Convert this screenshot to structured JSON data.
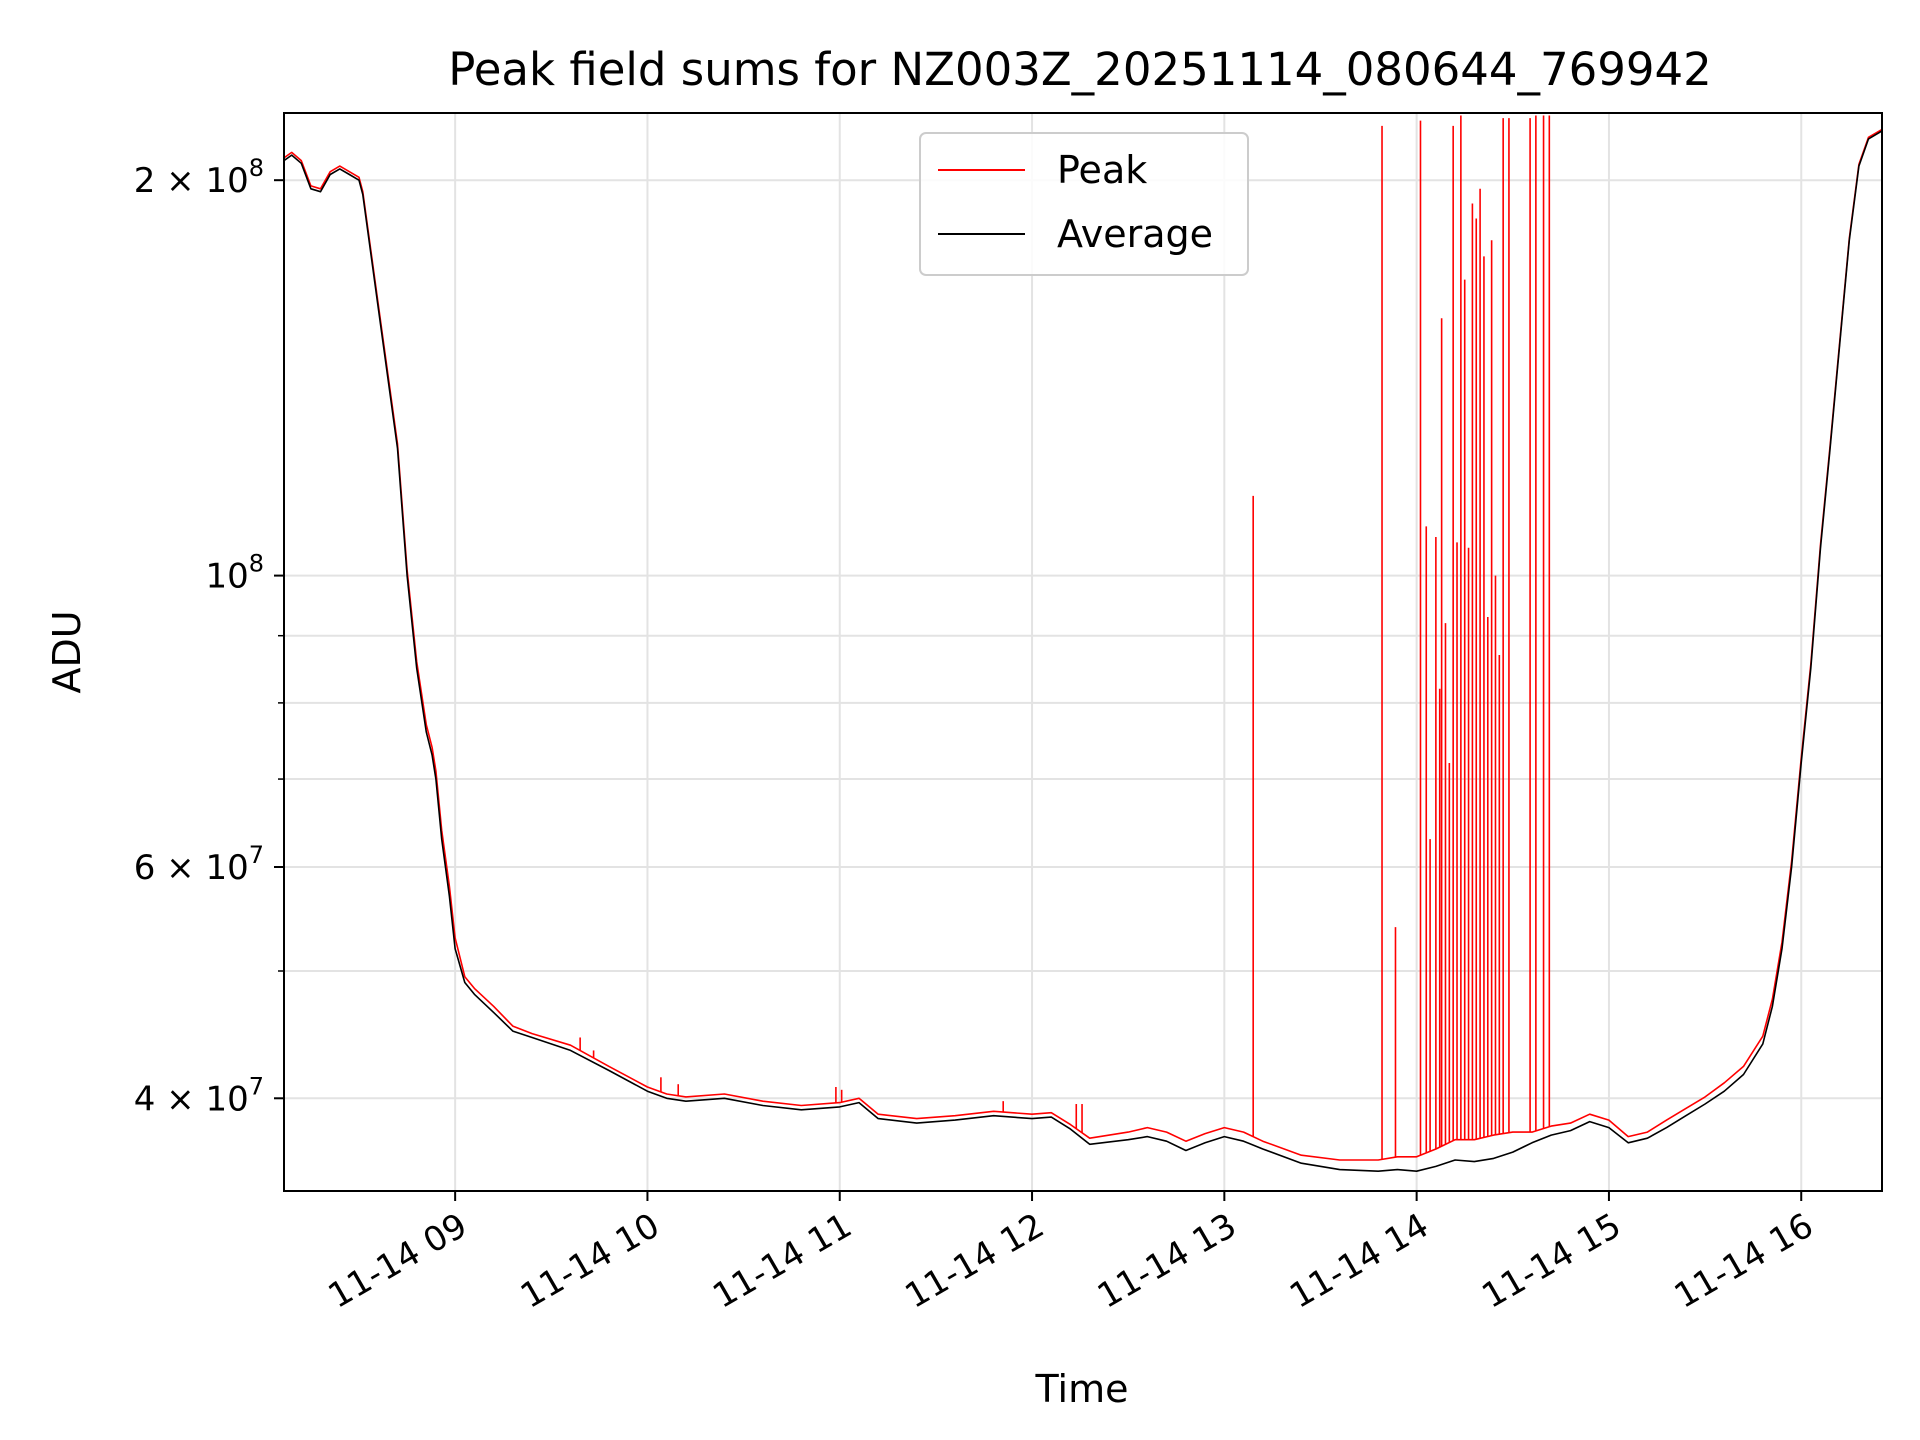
{
  "chart_data": {
    "type": "line",
    "title": "Peak field sums for NZ003Z_20251114_080644_769942",
    "xlabel": "Time",
    "ylabel": "ADU",
    "yscale": "log",
    "xlim": [
      8.11,
      16.42
    ],
    "ylim": [
      34000000,
      225000000
    ],
    "grid": true,
    "legend": {
      "location": "top-center",
      "entries": [
        "Peak",
        "Average"
      ]
    },
    "x_ticks": [
      {
        "value": 9,
        "label": "11-14 09"
      },
      {
        "value": 10,
        "label": "11-14 10"
      },
      {
        "value": 11,
        "label": "11-14 11"
      },
      {
        "value": 12,
        "label": "11-14 12"
      },
      {
        "value": 13,
        "label": "11-14 13"
      },
      {
        "value": 14,
        "label": "11-14 14"
      },
      {
        "value": 15,
        "label": "11-14 15"
      },
      {
        "value": 16,
        "label": "11-14 16"
      }
    ],
    "y_major_ticks": [
      {
        "value": 40000000,
        "mantissa": "4",
        "exponent": "7"
      },
      {
        "value": 60000000,
        "mantissa": "6",
        "exponent": "7"
      },
      {
        "value": 100000000,
        "mantissa": "",
        "exponent": "8"
      },
      {
        "value": 200000000,
        "mantissa": "2",
        "exponent": "8"
      }
    ],
    "y_minor_ticks": [
      50000000,
      70000000,
      80000000,
      90000000
    ],
    "series": [
      {
        "name": "Average",
        "color": "#000000",
        "x": [
          8.11,
          8.15,
          8.2,
          8.25,
          8.3,
          8.35,
          8.4,
          8.45,
          8.5,
          8.52,
          8.6,
          8.7,
          8.75,
          8.8,
          8.85,
          8.88,
          8.9,
          8.93,
          8.97,
          9.0,
          9.05,
          9.1,
          9.2,
          9.3,
          9.4,
          9.6,
          9.8,
          10.0,
          10.1,
          10.2,
          10.4,
          10.6,
          10.8,
          11.0,
          11.1,
          11.2,
          11.4,
          11.6,
          11.8,
          12.0,
          12.1,
          12.2,
          12.3,
          12.5,
          12.6,
          12.7,
          12.8,
          12.9,
          13.0,
          13.1,
          13.2,
          13.4,
          13.6,
          13.8,
          13.9,
          14.0,
          14.1,
          14.2,
          14.3,
          14.4,
          14.5,
          14.6,
          14.7,
          14.8,
          14.9,
          15.0,
          15.1,
          15.2,
          15.3,
          15.4,
          15.5,
          15.6,
          15.7,
          15.8,
          15.85,
          15.9,
          15.95,
          16.0,
          16.05,
          16.1,
          16.15,
          16.2,
          16.25,
          16.3,
          16.35,
          16.42
        ],
        "y": [
          207000000,
          209000000,
          206000000,
          197000000,
          196000000,
          202000000,
          204000000,
          202000000,
          200000000,
          195000000,
          160000000,
          125000000,
          100000000,
          85000000,
          76000000,
          73000000,
          70000000,
          63000000,
          57000000,
          52000000,
          49000000,
          48000000,
          46500000,
          45000000,
          44500000,
          43500000,
          42000000,
          40500000,
          40000000,
          39800000,
          40000000,
          39500000,
          39200000,
          39400000,
          39700000,
          38600000,
          38300000,
          38500000,
          38800000,
          38600000,
          38700000,
          37900000,
          36900000,
          37200000,
          37400000,
          37100000,
          36500000,
          37000000,
          37400000,
          37100000,
          36600000,
          35700000,
          35300000,
          35200000,
          35300000,
          35200000,
          35500000,
          35900000,
          35800000,
          36000000,
          36400000,
          37000000,
          37500000,
          37800000,
          38400000,
          38000000,
          37000000,
          37300000,
          38000000,
          38800000,
          39600000,
          40500000,
          41700000,
          44000000,
          47000000,
          52000000,
          60000000,
          72000000,
          85000000,
          105000000,
          125000000,
          150000000,
          180000000,
          205000000,
          215000000,
          218000000
        ]
      },
      {
        "name": "Peak",
        "color": "#ff0000",
        "x": [
          8.11,
          8.15,
          8.2,
          8.25,
          8.3,
          8.35,
          8.4,
          8.45,
          8.5,
          8.52,
          8.6,
          8.7,
          8.75,
          8.8,
          8.85,
          8.88,
          8.9,
          8.93,
          8.97,
          9.0,
          9.05,
          9.1,
          9.2,
          9.3,
          9.4,
          9.6,
          9.8,
          10.0,
          10.1,
          10.2,
          10.4,
          10.6,
          10.8,
          11.0,
          11.1,
          11.2,
          11.4,
          11.6,
          11.8,
          12.0,
          12.1,
          12.2,
          12.3,
          12.5,
          12.6,
          12.7,
          12.8,
          12.9,
          13.0,
          13.1,
          13.2,
          13.4,
          13.6,
          13.8,
          13.9,
          14.0,
          14.1,
          14.2,
          14.3,
          14.4,
          14.5,
          14.6,
          14.7,
          14.8,
          14.9,
          15.0,
          15.1,
          15.2,
          15.3,
          15.4,
          15.5,
          15.6,
          15.7,
          15.8,
          15.85,
          15.9,
          15.95,
          16.0,
          16.05,
          16.1,
          16.15,
          16.2,
          16.25,
          16.3,
          16.35,
          16.42
        ],
        "y": [
          208000000,
          210000000,
          207000000,
          198000000,
          197000000,
          203000000,
          205000000,
          203000000,
          201000000,
          196000000,
          161000000,
          126000000,
          101000000,
          86000000,
          77000000,
          74000000,
          71000000,
          64000000,
          58000000,
          53000000,
          49500000,
          48500000,
          47000000,
          45400000,
          44800000,
          43900000,
          42300000,
          40800000,
          40300000,
          40100000,
          40300000,
          39800000,
          39500000,
          39700000,
          40000000,
          38900000,
          38600000,
          38800000,
          39100000,
          38900000,
          39000000,
          38200000,
          37300000,
          37700000,
          38000000,
          37700000,
          37100000,
          37600000,
          38000000,
          37700000,
          37100000,
          36200000,
          35900000,
          35900000,
          36100000,
          36100000,
          36600000,
          37200000,
          37200000,
          37500000,
          37700000,
          37700000,
          38100000,
          38300000,
          38900000,
          38500000,
          37400000,
          37700000,
          38500000,
          39300000,
          40100000,
          41100000,
          42300000,
          44600000,
          47600000,
          52600000,
          60600000,
          72600000,
          85600000,
          105600000,
          125600000,
          150600000,
          180600000,
          205600000,
          215600000,
          218600000
        ]
      }
    ],
    "peak_spikes": [
      {
        "x": 9.65,
        "y": 44500000
      },
      {
        "x": 9.72,
        "y": 43500000
      },
      {
        "x": 10.07,
        "y": 41500000
      },
      {
        "x": 10.16,
        "y": 41000000
      },
      {
        "x": 10.98,
        "y": 40800000
      },
      {
        "x": 11.01,
        "y": 40600000
      },
      {
        "x": 11.85,
        "y": 39800000
      },
      {
        "x": 12.23,
        "y": 39600000
      },
      {
        "x": 12.26,
        "y": 39600000
      },
      {
        "x": 13.15,
        "y": 115000000
      },
      {
        "x": 13.82,
        "y": 220000000
      },
      {
        "x": 13.89,
        "y": 54000000
      },
      {
        "x": 14.02,
        "y": 222000000
      },
      {
        "x": 14.05,
        "y": 109000000
      },
      {
        "x": 14.07,
        "y": 63000000
      },
      {
        "x": 14.1,
        "y": 107000000
      },
      {
        "x": 14.12,
        "y": 82000000
      },
      {
        "x": 14.13,
        "y": 157000000
      },
      {
        "x": 14.15,
        "y": 92000000
      },
      {
        "x": 14.17,
        "y": 72000000
      },
      {
        "x": 14.19,
        "y": 220000000
      },
      {
        "x": 14.21,
        "y": 106000000
      },
      {
        "x": 14.23,
        "y": 224000000
      },
      {
        "x": 14.25,
        "y": 168000000
      },
      {
        "x": 14.27,
        "y": 105000000
      },
      {
        "x": 14.29,
        "y": 192000000
      },
      {
        "x": 14.31,
        "y": 187000000
      },
      {
        "x": 14.33,
        "y": 197000000
      },
      {
        "x": 14.35,
        "y": 175000000
      },
      {
        "x": 14.37,
        "y": 93000000
      },
      {
        "x": 14.39,
        "y": 180000000
      },
      {
        "x": 14.41,
        "y": 100000000
      },
      {
        "x": 14.43,
        "y": 87000000
      },
      {
        "x": 14.45,
        "y": 223000000
      },
      {
        "x": 14.48,
        "y": 223000000
      },
      {
        "x": 14.59,
        "y": 223000000
      },
      {
        "x": 14.62,
        "y": 224000000
      },
      {
        "x": 14.66,
        "y": 224000000
      },
      {
        "x": 14.69,
        "y": 224000000
      }
    ]
  }
}
